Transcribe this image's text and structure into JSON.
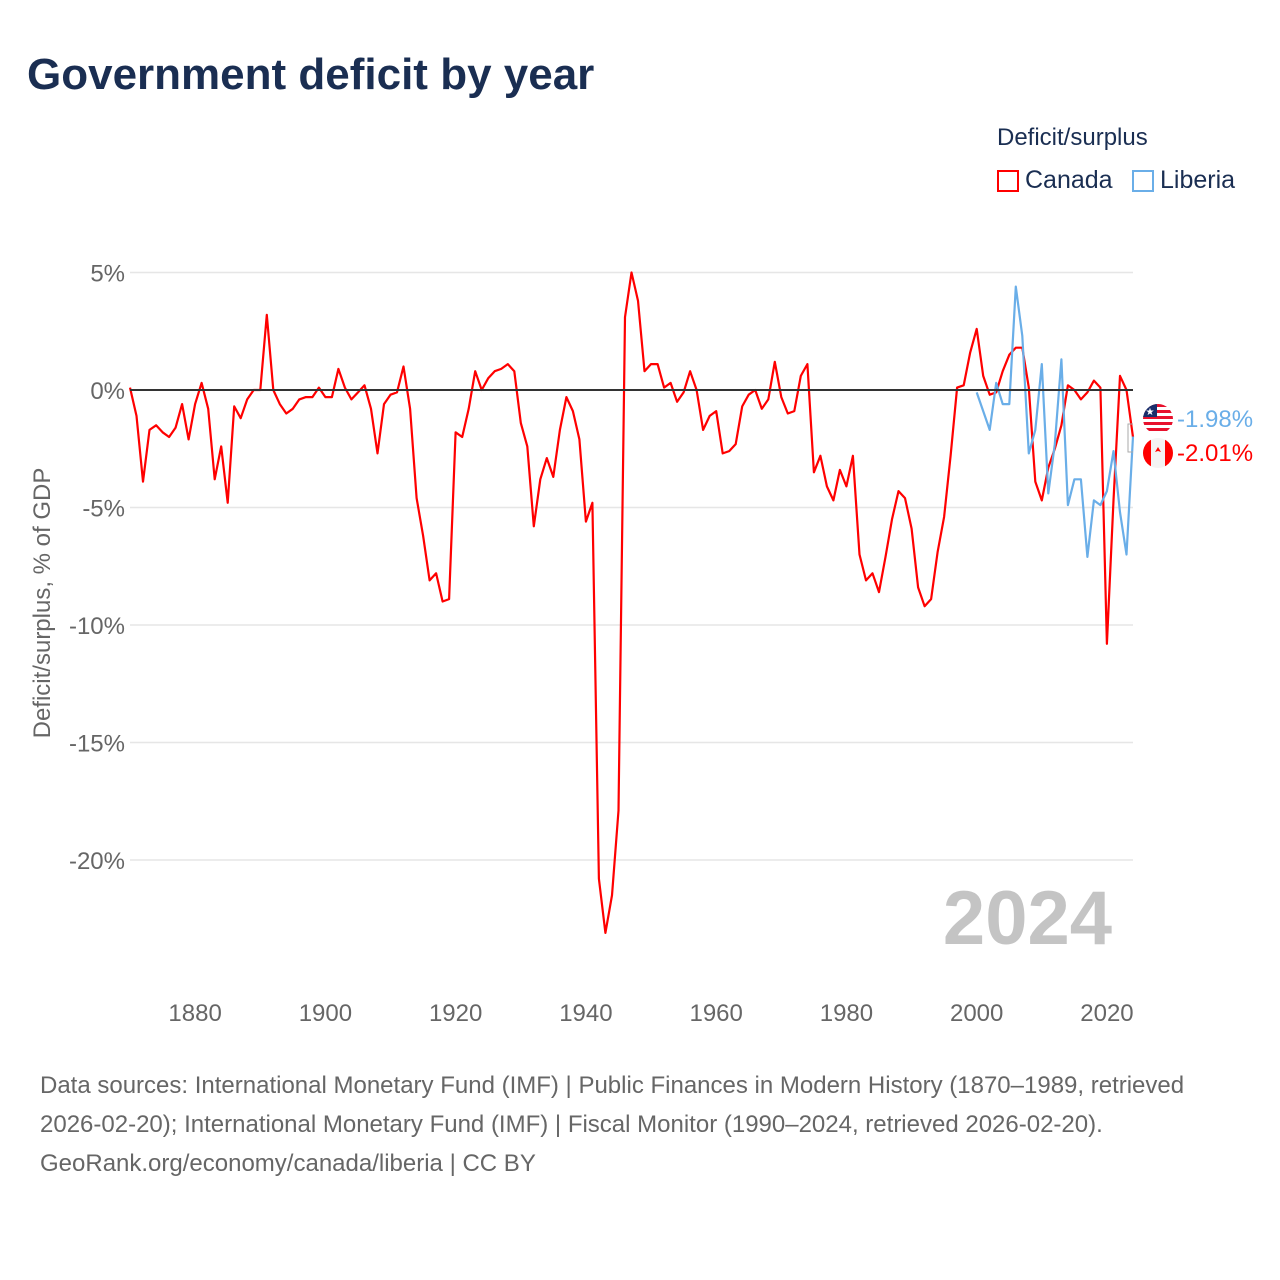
{
  "chart_data": {
    "type": "line",
    "title": "Government deficit by year",
    "ylabel": "Deficit/surplus, % of GDP",
    "xlabel": "",
    "ylim": [
      -25,
      6
    ],
    "xlim": [
      1870,
      2024
    ],
    "yticks": [
      5,
      0,
      -5,
      -10,
      -15,
      -20
    ],
    "ytick_labels": [
      "5%",
      "0%",
      "-5%",
      "-10%",
      "-15%",
      "-20%"
    ],
    "xticks": [
      1880,
      1900,
      1920,
      1940,
      1960,
      1980,
      2000,
      2020
    ],
    "xtick_labels": [
      "1880",
      "1900",
      "1920",
      "1940",
      "1960",
      "1980",
      "2000",
      "2020"
    ],
    "grid": true,
    "legend_title": "Deficit/surplus",
    "legend_position": "top-right",
    "year_watermark": "2024",
    "series": [
      {
        "name": "Canada",
        "color": "#ff0000",
        "start_year": 1870,
        "end_label": "-2.01%",
        "values": [
          0.1,
          -1.1,
          -3.9,
          -1.7,
          -1.5,
          -1.8,
          -2.0,
          -1.6,
          -0.6,
          -2.1,
          -0.6,
          0.3,
          -0.8,
          -3.8,
          -2.4,
          -4.8,
          -0.7,
          -1.2,
          -0.4,
          0.0,
          0.0,
          3.2,
          0.0,
          -0.6,
          -1.0,
          -0.8,
          -0.4,
          -0.3,
          -0.3,
          0.1,
          -0.3,
          -0.3,
          0.9,
          0.1,
          -0.4,
          -0.1,
          0.2,
          -0.8,
          -2.7,
          -0.6,
          -0.2,
          -0.1,
          1.0,
          -0.8,
          -4.6,
          -6.2,
          -8.1,
          -7.8,
          -9.0,
          -8.9,
          -1.8,
          -2.0,
          -0.8,
          0.8,
          0.0,
          0.5,
          0.8,
          0.9,
          1.1,
          0.8,
          -1.4,
          -2.4,
          -5.8,
          -3.8,
          -2.9,
          -3.7,
          -1.7,
          -0.3,
          -0.9,
          -2.1,
          -5.6,
          -4.8,
          -20.8,
          -23.1,
          -21.5,
          -17.9,
          3.1,
          5.0,
          3.8,
          0.8,
          1.1,
          1.1,
          0.1,
          0.3,
          -0.5,
          -0.1,
          0.8,
          0.0,
          -1.7,
          -1.1,
          -0.9,
          -2.7,
          -2.6,
          -2.3,
          -0.7,
          -0.2,
          0.0,
          -0.8,
          -0.4,
          1.2,
          -0.3,
          -1.0,
          -0.9,
          0.6,
          1.1,
          -3.5,
          -2.8,
          -4.1,
          -4.7,
          -3.4,
          -4.1,
          -2.8,
          -7.0,
          -8.1,
          -7.8,
          -8.6,
          -7.1,
          -5.5,
          -4.3,
          -4.6,
          -5.9,
          -8.4,
          -9.2,
          -8.9,
          -6.9,
          -5.4,
          -2.8,
          0.1,
          0.2,
          1.6,
          2.6,
          0.6,
          -0.2,
          -0.1,
          0.8,
          1.5,
          1.8,
          1.8,
          0.1,
          -3.9,
          -4.7,
          -3.3,
          -2.5,
          -1.5,
          0.2,
          0.0,
          -0.4,
          -0.1,
          0.4,
          0.1,
          -10.8,
          -4.7,
          0.6,
          0.0,
          -2.01
        ]
      },
      {
        "name": "Liberia",
        "color": "#6aaee8",
        "start_year": 2000,
        "end_label": "-1.98%",
        "values": [
          -0.1,
          -0.9,
          -1.7,
          0.3,
          -0.6,
          -0.6,
          4.4,
          2.3,
          -2.7,
          -1.7,
          1.1,
          -4.4,
          -2.3,
          1.3,
          -4.9,
          -3.8,
          -3.8,
          -7.1,
          -4.7,
          -4.9,
          -4.3,
          -2.6,
          -5.2,
          -7.0,
          -1.98
        ]
      }
    ]
  },
  "footer": {
    "sources": "Data sources: International Monetary Fund (IMF) | Public Finances in Modern History (1870–1989, retrieved 2026-02-20); International Monetary Fund (IMF) | Fiscal Monitor (1990–2024, retrieved 2026-02-20).",
    "link": "GeoRank.org/economy/canada/liberia | CC BY"
  }
}
